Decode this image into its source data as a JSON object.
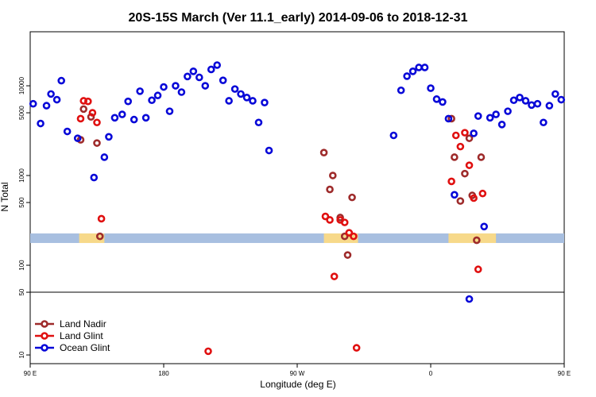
{
  "chart_data": {
    "type": "scatter",
    "title": "20S-15S March (Ver 11.1_early)   2014-09-06 to 2018-12-31",
    "xlabel": "Longitude (deg E)",
    "ylabel": "N Total",
    "x_scale": "longitude",
    "y_scale": "log",
    "xlim": [
      90,
      450
    ],
    "ylim": [
      8,
      40000
    ],
    "x_ticks": [
      {
        "value": 90,
        "label": "90 E"
      },
      {
        "value": 180,
        "label": "180"
      },
      {
        "value": 270,
        "label": "90 W"
      },
      {
        "value": 360,
        "label": "0"
      },
      {
        "value": 450,
        "label": "90 E"
      },
      {
        "value": 540,
        "label": "180"
      }
    ],
    "y_ticks": [
      {
        "value": 10,
        "label": "10"
      },
      {
        "value": 50,
        "label": "50"
      },
      {
        "value": 100,
        "label": "100"
      },
      {
        "value": 500,
        "label": "500"
      },
      {
        "value": 1000,
        "label": "1000"
      },
      {
        "value": 5000,
        "label": "5000"
      },
      {
        "value": 10000,
        "label": "10000"
      }
    ],
    "reference_line": 50,
    "band": {
      "y": 200,
      "color": "#a8bfe0",
      "highlight_color": "#f7d98a",
      "highlight_ranges": [
        [
          123,
          140
        ],
        [
          288,
          311
        ],
        [
          372,
          404
        ],
        [
          484,
          507
        ]
      ]
    },
    "legend": {
      "position": "bottom-left"
    },
    "series": [
      {
        "name": "Land Nadir",
        "color": "#9e2b2b",
        "points": [
          [
            124,
            2500
          ],
          [
            126,
            5500
          ],
          [
            131,
            4500
          ],
          [
            135,
            2300
          ],
          [
            137,
            210
          ],
          [
            288,
            1800
          ],
          [
            292,
            700
          ],
          [
            294,
            1000
          ],
          [
            299,
            340
          ],
          [
            302,
            210
          ],
          [
            304,
            130
          ],
          [
            307,
            570
          ],
          [
            374,
            4300
          ],
          [
            376,
            1600
          ],
          [
            380,
            520
          ],
          [
            383,
            1050
          ],
          [
            386,
            2600
          ],
          [
            388,
            600
          ],
          [
            391,
            190
          ],
          [
            394,
            1600
          ],
          [
            464,
            2500
          ],
          [
            466,
            5500
          ],
          [
            471,
            4500
          ],
          [
            475,
            2300
          ],
          [
            477,
            210
          ]
        ]
      },
      {
        "name": "Land Glint",
        "color": "#e01010",
        "points": [
          [
            124,
            4300
          ],
          [
            126,
            6800
          ],
          [
            129,
            6700
          ],
          [
            132,
            5000
          ],
          [
            135,
            3900
          ],
          [
            138,
            330
          ],
          [
            210,
            11
          ],
          [
            289,
            350
          ],
          [
            292,
            320
          ],
          [
            295,
            75
          ],
          [
            299,
            320
          ],
          [
            302,
            300
          ],
          [
            305,
            230
          ],
          [
            308,
            210
          ],
          [
            310,
            12
          ],
          [
            374,
            860
          ],
          [
            377,
            2800
          ],
          [
            380,
            2100
          ],
          [
            383,
            3000
          ],
          [
            386,
            1300
          ],
          [
            389,
            560
          ],
          [
            392,
            90
          ],
          [
            395,
            630
          ],
          [
            464,
            4300
          ],
          [
            466,
            6800
          ],
          [
            469,
            6700
          ],
          [
            472,
            5000
          ],
          [
            475,
            3900
          ],
          [
            478,
            330
          ]
        ]
      },
      {
        "name": "Ocean Glint",
        "color": "#0808d8",
        "points": [
          [
            92,
            6300
          ],
          [
            97,
            3800
          ],
          [
            101,
            6000
          ],
          [
            104,
            8100
          ],
          [
            108,
            7000
          ],
          [
            111,
            11400
          ],
          [
            115,
            3100
          ],
          [
            122,
            2600
          ],
          [
            133,
            950
          ],
          [
            140,
            1600
          ],
          [
            143,
            2700
          ],
          [
            147,
            4400
          ],
          [
            152,
            4800
          ],
          [
            156,
            6700
          ],
          [
            160,
            4200
          ],
          [
            164,
            8700
          ],
          [
            168,
            4400
          ],
          [
            172,
            6900
          ],
          [
            176,
            7800
          ],
          [
            180,
            9700
          ],
          [
            184,
            5200
          ],
          [
            188,
            10000
          ],
          [
            192,
            8500
          ],
          [
            196,
            12700
          ],
          [
            200,
            14500
          ],
          [
            204,
            12400
          ],
          [
            208,
            10000
          ],
          [
            212,
            15200
          ],
          [
            216,
            17000
          ],
          [
            220,
            11500
          ],
          [
            224,
            6800
          ],
          [
            228,
            9200
          ],
          [
            232,
            8100
          ],
          [
            236,
            7400
          ],
          [
            240,
            6800
          ],
          [
            244,
            3900
          ],
          [
            248,
            6500
          ],
          [
            251,
            1900
          ],
          [
            335,
            2800
          ],
          [
            340,
            8900
          ],
          [
            344,
            12800
          ],
          [
            348,
            14500
          ],
          [
            352,
            16000
          ],
          [
            356,
            16000
          ],
          [
            360,
            9400
          ],
          [
            364,
            7100
          ],
          [
            368,
            6600
          ],
          [
            372,
            4300
          ],
          [
            376,
            610
          ],
          [
            386,
            42
          ],
          [
            389,
            2950
          ],
          [
            392,
            4600
          ],
          [
            396,
            270
          ],
          [
            400,
            4400
          ],
          [
            404,
            4800
          ],
          [
            408,
            3700
          ],
          [
            412,
            5200
          ],
          [
            416,
            6900
          ],
          [
            420,
            7400
          ],
          [
            424,
            6800
          ],
          [
            428,
            6100
          ],
          [
            432,
            6300
          ],
          [
            436,
            3900
          ],
          [
            440,
            6000
          ],
          [
            444,
            8100
          ],
          [
            448,
            7000
          ],
          [
            452,
            11400
          ],
          [
            455,
            3100
          ],
          [
            464,
            960
          ],
          [
            467,
            1600
          ],
          [
            470,
            2600
          ],
          [
            474,
            4400
          ],
          [
            478,
            4800
          ],
          [
            482,
            6700
          ],
          [
            486,
            4200
          ],
          [
            490,
            8700
          ]
        ]
      }
    ]
  }
}
